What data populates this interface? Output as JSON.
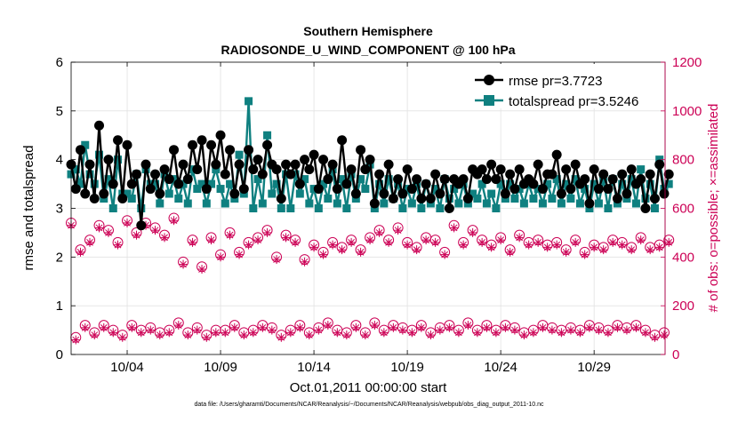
{
  "chart_data": {
    "type": "line",
    "title": "Southern Hemisphere",
    "subtitle": "RADIOSONDE_U_WIND_COMPONENT @ 100 hPa",
    "xlabel": "Oct.01,2011 00:00:00 start",
    "ylabel_left": "rmse and totalspread",
    "ylabel_right": "# of obs: o=possible; ×=assimilated",
    "x_tick_labels": [
      "10/04",
      "10/09",
      "10/14",
      "10/19",
      "10/24",
      "10/29"
    ],
    "x_tick_days": [
      4,
      9,
      14,
      19,
      24,
      29
    ],
    "xlim": [
      1,
      32.8
    ],
    "ylim_left": [
      0,
      6
    ],
    "yticks_left": [
      0,
      1,
      2,
      3,
      4,
      5,
      6
    ],
    "ylim_right": [
      0,
      1200
    ],
    "yticks_right": [
      0,
      200,
      400,
      600,
      800,
      1000,
      1200
    ],
    "legend": [
      "rmse pr=3.7723",
      "totalspread pr=3.5246"
    ],
    "legend_position": "top-right",
    "grid": true,
    "colors": {
      "rmse": "#000000",
      "totalspread": "#0f8080",
      "obs": "#cc0055"
    },
    "x_start": 1.0,
    "x_step": 0.25,
    "rmse": [
      3.9,
      3.4,
      4.2,
      3.3,
      3.9,
      3.2,
      4.7,
      3.3,
      4.0,
      3.5,
      4.4,
      3.2,
      4.3,
      3.5,
      3.7,
      2.65,
      3.9,
      3.4,
      3.7,
      3.3,
      3.8,
      3.6,
      4.2,
      3.5,
      3.9,
      3.6,
      4.3,
      3.8,
      4.4,
      3.4,
      4.3,
      3.9,
      4.5,
      3.7,
      4.2,
      3.3,
      3.9,
      3.4,
      4.2,
      3.8,
      4.0,
      3.7,
      4.3,
      3.9,
      3.8,
      3.2,
      3.9,
      3.7,
      3.9,
      3.5,
      4.0,
      3.8,
      4.1,
      3.4,
      4.0,
      3.6,
      3.9,
      3.4,
      4.4,
      3.5,
      3.8,
      3.3,
      4.2,
      3.8,
      4.0,
      3.1,
      3.7,
      3.3,
      3.9,
      3.2,
      3.6,
      3.3,
      3.8,
      3.4,
      3.6,
      3.2,
      3.5,
      3.2,
      3.7,
      3.3,
      3.6,
      3.0,
      3.6,
      3.5,
      3.6,
      3.2,
      3.8,
      3.7,
      3.8,
      3.6,
      3.9,
      3.6,
      3.8,
      3.3,
      3.7,
      3.4,
      3.8,
      3.5,
      3.6,
      3.5,
      3.9,
      3.4,
      3.7,
      3.7,
      4.1,
      3.3,
      3.8,
      3.4,
      3.9,
      3.5,
      3.6,
      3.1,
      3.8,
      3.4,
      3.7,
      3.4,
      3.6,
      3.2,
      3.7,
      3.3,
      3.8,
      3.5,
      3.6,
      3.0,
      3.7,
      3.2,
      3.9,
      3.3,
      3.7
    ],
    "totalspread": [
      3.7,
      3.8,
      3.5,
      4.3,
      3.7,
      3.5,
      4.1,
      3.2,
      3.6,
      3.0,
      4.0,
      3.3,
      3.3,
      3.2,
      3.7,
      3.0,
      3.8,
      3.5,
      3.5,
      3.1,
      3.7,
      3.3,
      3.6,
      3.2,
      3.5,
      3.1,
      3.8,
      3.4,
      3.5,
      3.1,
      3.5,
      3.8,
      3.4,
      3.1,
      3.5,
      3.2,
      4.1,
      3.3,
      5.2,
      3.0,
      3.6,
      3.1,
      4.5,
      3.3,
      3.5,
      3.0,
      3.7,
      3.0,
      3.7,
      3.3,
      3.6,
      3.1,
      3.4,
      3.0,
      3.5,
      3.2,
      3.8,
      3.1,
      3.6,
      3.0,
      3.7,
      3.2,
      3.6,
      3.4,
      3.9,
      3.0,
      3.5,
      3.1,
      3.6,
      3.2,
      3.5,
      3.0,
      3.4,
      3.1,
      3.5,
      3.0,
      3.5,
      3.1,
      3.4,
      3.0,
      3.6,
      3.2,
      3.4,
      3.1,
      3.5,
      3.1,
      3.3,
      3.2,
      3.5,
      3.1,
      3.3,
      3.0,
      3.5,
      3.2,
      3.5,
      3.2,
      3.4,
      3.1,
      3.5,
      3.2,
      3.4,
      3.1,
      3.5,
      3.2,
      3.6,
      3.1,
      3.5,
      3.2,
      3.6,
      3.1,
      3.4,
      3.0,
      3.5,
      3.1,
      3.6,
      3.0,
      3.6,
      3.1,
      3.5,
      3.2,
      3.6,
      3.1,
      3.8,
      3.2,
      3.5,
      3.0,
      4.0,
      3.4,
      3.5
    ],
    "obs_possible": [
      540,
      70,
      430,
      120,
      470,
      90,
      530,
      120,
      510,
      100,
      460,
      80,
      550,
      120,
      500,
      100,
      540,
      110,
      520,
      90,
      490,
      100,
      560,
      130,
      380,
      90,
      470,
      110,
      360,
      80,
      480,
      100,
      410,
      100,
      500,
      120,
      420,
      90,
      460,
      100,
      480,
      120,
      510,
      110,
      400,
      80,
      490,
      100,
      470,
      120,
      390,
      90,
      450,
      110,
      420,
      130,
      460,
      100,
      440,
      90,
      470,
      120,
      430,
      90,
      480,
      130,
      510,
      100,
      470,
      120,
      520,
      110,
      460,
      100,
      440,
      120,
      480,
      90,
      470,
      110,
      420,
      120,
      530,
      100,
      460,
      130,
      510,
      100,
      470,
      120,
      450,
      100,
      480,
      120,
      430,
      110,
      490,
      90,
      460,
      100,
      470,
      120,
      450,
      110,
      460,
      100,
      430,
      110,
      470,
      100,
      420,
      120,
      450,
      110,
      440,
      100,
      470,
      120,
      460,
      110,
      440,
      120,
      480,
      100,
      440,
      80,
      450,
      90,
      470
    ],
    "obs_assimilated": [
      530,
      60,
      420,
      110,
      460,
      80,
      520,
      110,
      500,
      90,
      450,
      70,
      540,
      110,
      490,
      90,
      530,
      100,
      510,
      80,
      480,
      90,
      550,
      120,
      370,
      80,
      460,
      100,
      350,
      70,
      470,
      90,
      400,
      90,
      490,
      110,
      410,
      80,
      450,
      90,
      470,
      110,
      500,
      100,
      390,
      70,
      480,
      90,
      460,
      110,
      380,
      80,
      440,
      100,
      410,
      120,
      450,
      90,
      430,
      80,
      460,
      110,
      420,
      80,
      470,
      120,
      500,
      90,
      460,
      110,
      510,
      100,
      450,
      90,
      430,
      110,
      470,
      80,
      460,
      100,
      410,
      110,
      520,
      90,
      450,
      120,
      500,
      90,
      460,
      110,
      440,
      90,
      470,
      110,
      420,
      100,
      480,
      80,
      450,
      90,
      460,
      110,
      440,
      100,
      450,
      90,
      420,
      100,
      460,
      90,
      410,
      110,
      440,
      100,
      430,
      90,
      460,
      110,
      450,
      100,
      430,
      110,
      470,
      90,
      430,
      70,
      440,
      80,
      460
    ]
  },
  "footnote": "data file: /Users/gharamti/Documents/NCAR/Reanalysis/~/Documents/NCAR/Reanalysis/webpub/obs_diag_output_2011-10.nc"
}
